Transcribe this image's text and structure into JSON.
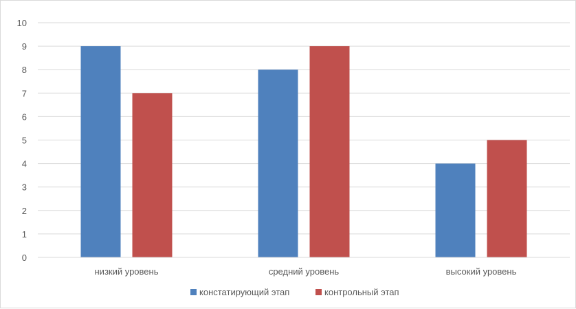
{
  "chart_data": {
    "type": "bar",
    "categories": [
      "низкий уровень",
      "средний уровень",
      "высокий уровень"
    ],
    "series": [
      {
        "name": "констатирующий этап",
        "values": [
          9,
          8,
          4
        ],
        "color": "#4f81bd"
      },
      {
        "name": "контрольный этап",
        "values": [
          7,
          9,
          5
        ],
        "color": "#c0504d"
      }
    ],
    "ylim": [
      0,
      10
    ],
    "yticks": [
      "0",
      "1",
      "2",
      "3",
      "4",
      "5",
      "6",
      "7",
      "8",
      "9",
      "10"
    ],
    "grid": true,
    "legend_position": "bottom",
    "title": "",
    "xlabel": "",
    "ylabel": ""
  }
}
